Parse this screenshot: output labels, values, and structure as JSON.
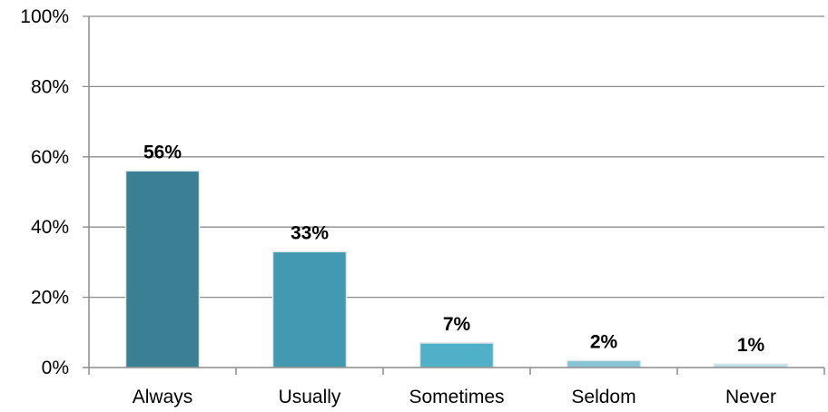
{
  "chart_data": {
    "type": "bar",
    "title": "",
    "xlabel": "",
    "ylabel": "",
    "categories": [
      "Always",
      "Usually",
      "Sometimes",
      "Seldom",
      "Never"
    ],
    "values": [
      56,
      33,
      7,
      2,
      1
    ],
    "data_labels": [
      "56%",
      "33%",
      "7%",
      "2%",
      "1%"
    ],
    "bar_colors": [
      "#3a7f93",
      "#4399b1",
      "#4fb0c8",
      "#86c3d5",
      "#b8dde6"
    ],
    "ylim": [
      0,
      100
    ],
    "y_ticks": [
      0,
      20,
      40,
      60,
      80,
      100
    ],
    "y_tick_labels": [
      "0%",
      "20%",
      "40%",
      "60%",
      "80%",
      "100%"
    ],
    "grid": true,
    "legend": "none"
  }
}
